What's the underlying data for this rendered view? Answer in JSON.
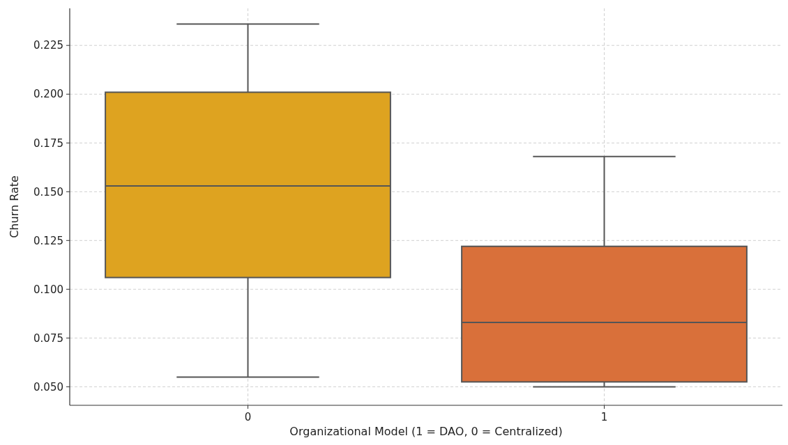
{
  "chart_data": {
    "type": "box",
    "xlabel": "Organizational Model (1 = DAO, 0 = Centralized)",
    "ylabel": "Churn Rate",
    "categories": [
      "0",
      "1"
    ],
    "colors": [
      "#dea320",
      "#d9703a"
    ],
    "boxes": [
      {
        "low": 0.055,
        "q1": 0.106,
        "median": 0.153,
        "q3": 0.201,
        "high": 0.236
      },
      {
        "low": 0.05,
        "q1": 0.0525,
        "median": 0.083,
        "q3": 0.122,
        "high": 0.168
      }
    ],
    "ylim": [
      0.0405,
      0.244
    ],
    "yticks": [
      {
        "value": 0.05,
        "label": "0.050"
      },
      {
        "value": 0.075,
        "label": "0.075"
      },
      {
        "value": 0.1,
        "label": "0.100"
      },
      {
        "value": 0.125,
        "label": "0.125"
      },
      {
        "value": 0.15,
        "label": "0.150"
      },
      {
        "value": 0.175,
        "label": "0.175"
      },
      {
        "value": 0.2,
        "label": "0.200"
      },
      {
        "value": 0.225,
        "label": "0.225"
      }
    ],
    "grid": true
  }
}
